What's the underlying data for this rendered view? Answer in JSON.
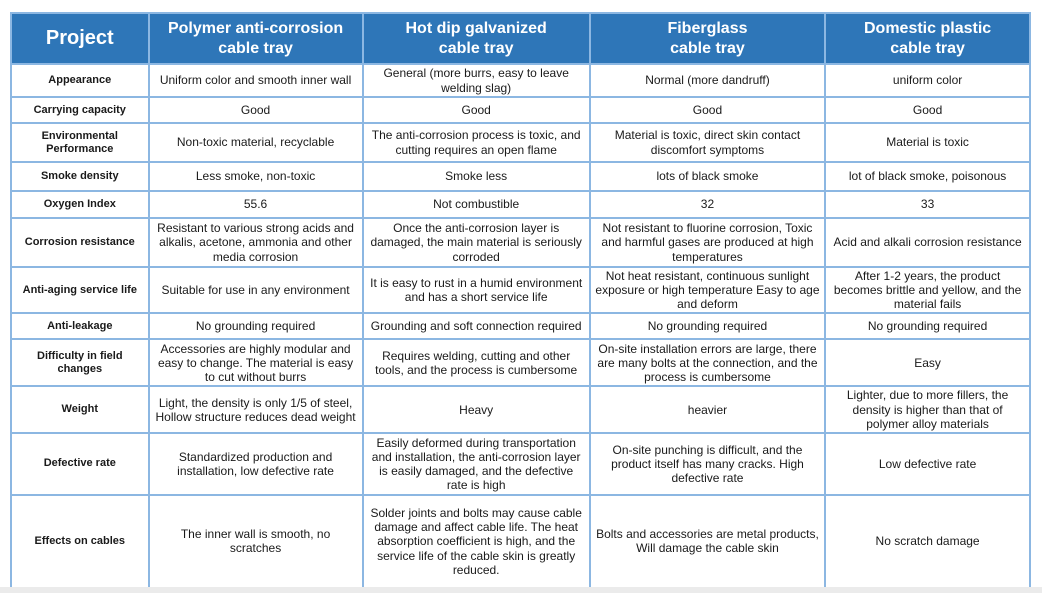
{
  "colors": {
    "header_bg": "#2E76B8",
    "inner_border": "#8CB7E2",
    "outer_border": "#5B9BD5",
    "header_text": "#FFFFFF",
    "body_text": "#1A1A1A"
  },
  "table": {
    "header_col_label": "Project",
    "columns": [
      "Polymer anti-corrosion\ncable tray",
      "Hot dip galvanized\ncable tray",
      "Fiberglass\ncable tray",
      "Domestic plastic\ncable tray"
    ],
    "rows": [
      {
        "label": "Appearance",
        "cells": [
          "Uniform color and smooth inner wall",
          "General (more burrs, easy to leave welding slag)",
          "Normal (more dandruff)",
          "uniform color"
        ]
      },
      {
        "label": "Carrying capacity",
        "cells": [
          "Good",
          "Good",
          "Good",
          "Good"
        ]
      },
      {
        "label": "Environmental Performance",
        "cells": [
          "Non-toxic material, recyclable",
          "The anti-corrosion process is toxic, and cutting requires an open flame",
          "Material is toxic, direct skin contact discomfort symptoms",
          "Material is toxic"
        ]
      },
      {
        "label": "Smoke density",
        "cells": [
          "Less smoke, non-toxic",
          "Smoke less",
          "lots of black smoke",
          "lot of black smoke, poisonous"
        ]
      },
      {
        "label": "Oxygen Index",
        "cells": [
          "55.6",
          "Not combustible",
          "32",
          "33"
        ]
      },
      {
        "label": "Corrosion resistance",
        "cells": [
          "Resistant to various strong acids and alkalis, acetone, ammonia and other media corrosion",
          "Once the anti-corrosion layer is damaged, the main material is seriously corroded",
          "Not resistant to fluorine corrosion, Toxic and harmful gases are produced at high temperatures",
          "Acid and alkali corrosion resistance"
        ]
      },
      {
        "label": "Anti-aging service life",
        "cells": [
          "Suitable for use in any environment",
          "It is easy to rust in a humid environment and has a short service life",
          "Not heat resistant, continuous sunlight exposure or high temperature Easy to age and deform",
          "After 1-2 years, the product becomes brittle and yellow, and the material fails"
        ]
      },
      {
        "label": "Anti-leakage",
        "cells": [
          "No grounding required",
          "Grounding and soft connection required",
          "No grounding required",
          "No grounding required"
        ]
      },
      {
        "label": "Difficulty in field changes",
        "cells": [
          "Accessories are highly modular and easy to change. The material is easy to cut without burrs",
          "Requires welding, cutting and other tools, and the process is cumbersome",
          "On-site installation errors are large, there are many bolts at the connection, and the process is cumbersome",
          "Easy"
        ]
      },
      {
        "label": "Weight",
        "cells": [
          "Light, the density is only 1/5 of steel, Hollow structure reduces dead weight",
          "Heavy",
          "heavier",
          "Lighter, due to more fillers, the density is higher than that of polymer alloy materials"
        ]
      },
      {
        "label": "Defective rate",
        "cells": [
          "Standardized production and installation, low defective rate",
          "Easily deformed during transportation and installation, the anti-corrosion layer is easily damaged, and the defective rate is high",
          "On-site punching is difficult, and the product itself has many cracks. High defective rate",
          "Low defective rate"
        ]
      },
      {
        "label": "Effects on cables",
        "cells": [
          "The inner wall is smooth, no scratches",
          "Solder joints and bolts may cause cable damage and affect cable life. The heat absorption coefficient is high, and the service life of the cable skin is greatly reduced.",
          "Bolts and accessories are metal products, Will damage the cable skin",
          "No scratch damage"
        ]
      }
    ]
  }
}
